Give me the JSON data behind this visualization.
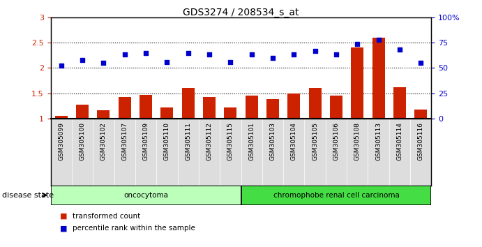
{
  "title": "GDS3274 / 208534_s_at",
  "samples": [
    "GSM305099",
    "GSM305100",
    "GSM305102",
    "GSM305107",
    "GSM305109",
    "GSM305110",
    "GSM305111",
    "GSM305112",
    "GSM305115",
    "GSM305101",
    "GSM305103",
    "GSM305104",
    "GSM305105",
    "GSM305106",
    "GSM305108",
    "GSM305113",
    "GSM305114",
    "GSM305116"
  ],
  "bar_values": [
    1.05,
    1.28,
    1.17,
    1.42,
    1.47,
    1.22,
    1.6,
    1.43,
    1.22,
    1.45,
    1.38,
    1.5,
    1.6,
    1.45,
    2.4,
    2.6,
    1.62,
    1.18
  ],
  "dot_values_pct": [
    52,
    58,
    55,
    63,
    65,
    56,
    65,
    63,
    56,
    63,
    60,
    63,
    67,
    63,
    74,
    78,
    68,
    55
  ],
  "bar_color": "#cc2200",
  "dot_color": "#0000cc",
  "groups": [
    {
      "label": "oncocytoma",
      "start": 0,
      "end": 9,
      "color": "#bbffbb"
    },
    {
      "label": "chromophobe renal cell carcinoma",
      "start": 9,
      "end": 18,
      "color": "#44dd44"
    }
  ],
  "ylim_left": [
    1.0,
    3.0
  ],
  "ylim_right": [
    0,
    100
  ],
  "yticks_left": [
    1.0,
    1.5,
    2.0,
    2.5,
    3.0
  ],
  "yticks_right": [
    0,
    25,
    50,
    75,
    100
  ],
  "ytick_labels_left": [
    "1",
    "1.5",
    "2",
    "2.5",
    "3"
  ],
  "ytick_labels_right": [
    "0",
    "25",
    "50",
    "75",
    "100%"
  ],
  "legend_items": [
    {
      "label": "transformed count",
      "color": "#cc2200"
    },
    {
      "label": "percentile rank within the sample",
      "color": "#0000cc"
    }
  ],
  "disease_state_label": "disease state",
  "background_color": "#ffffff",
  "xtick_bg": "#dddddd"
}
